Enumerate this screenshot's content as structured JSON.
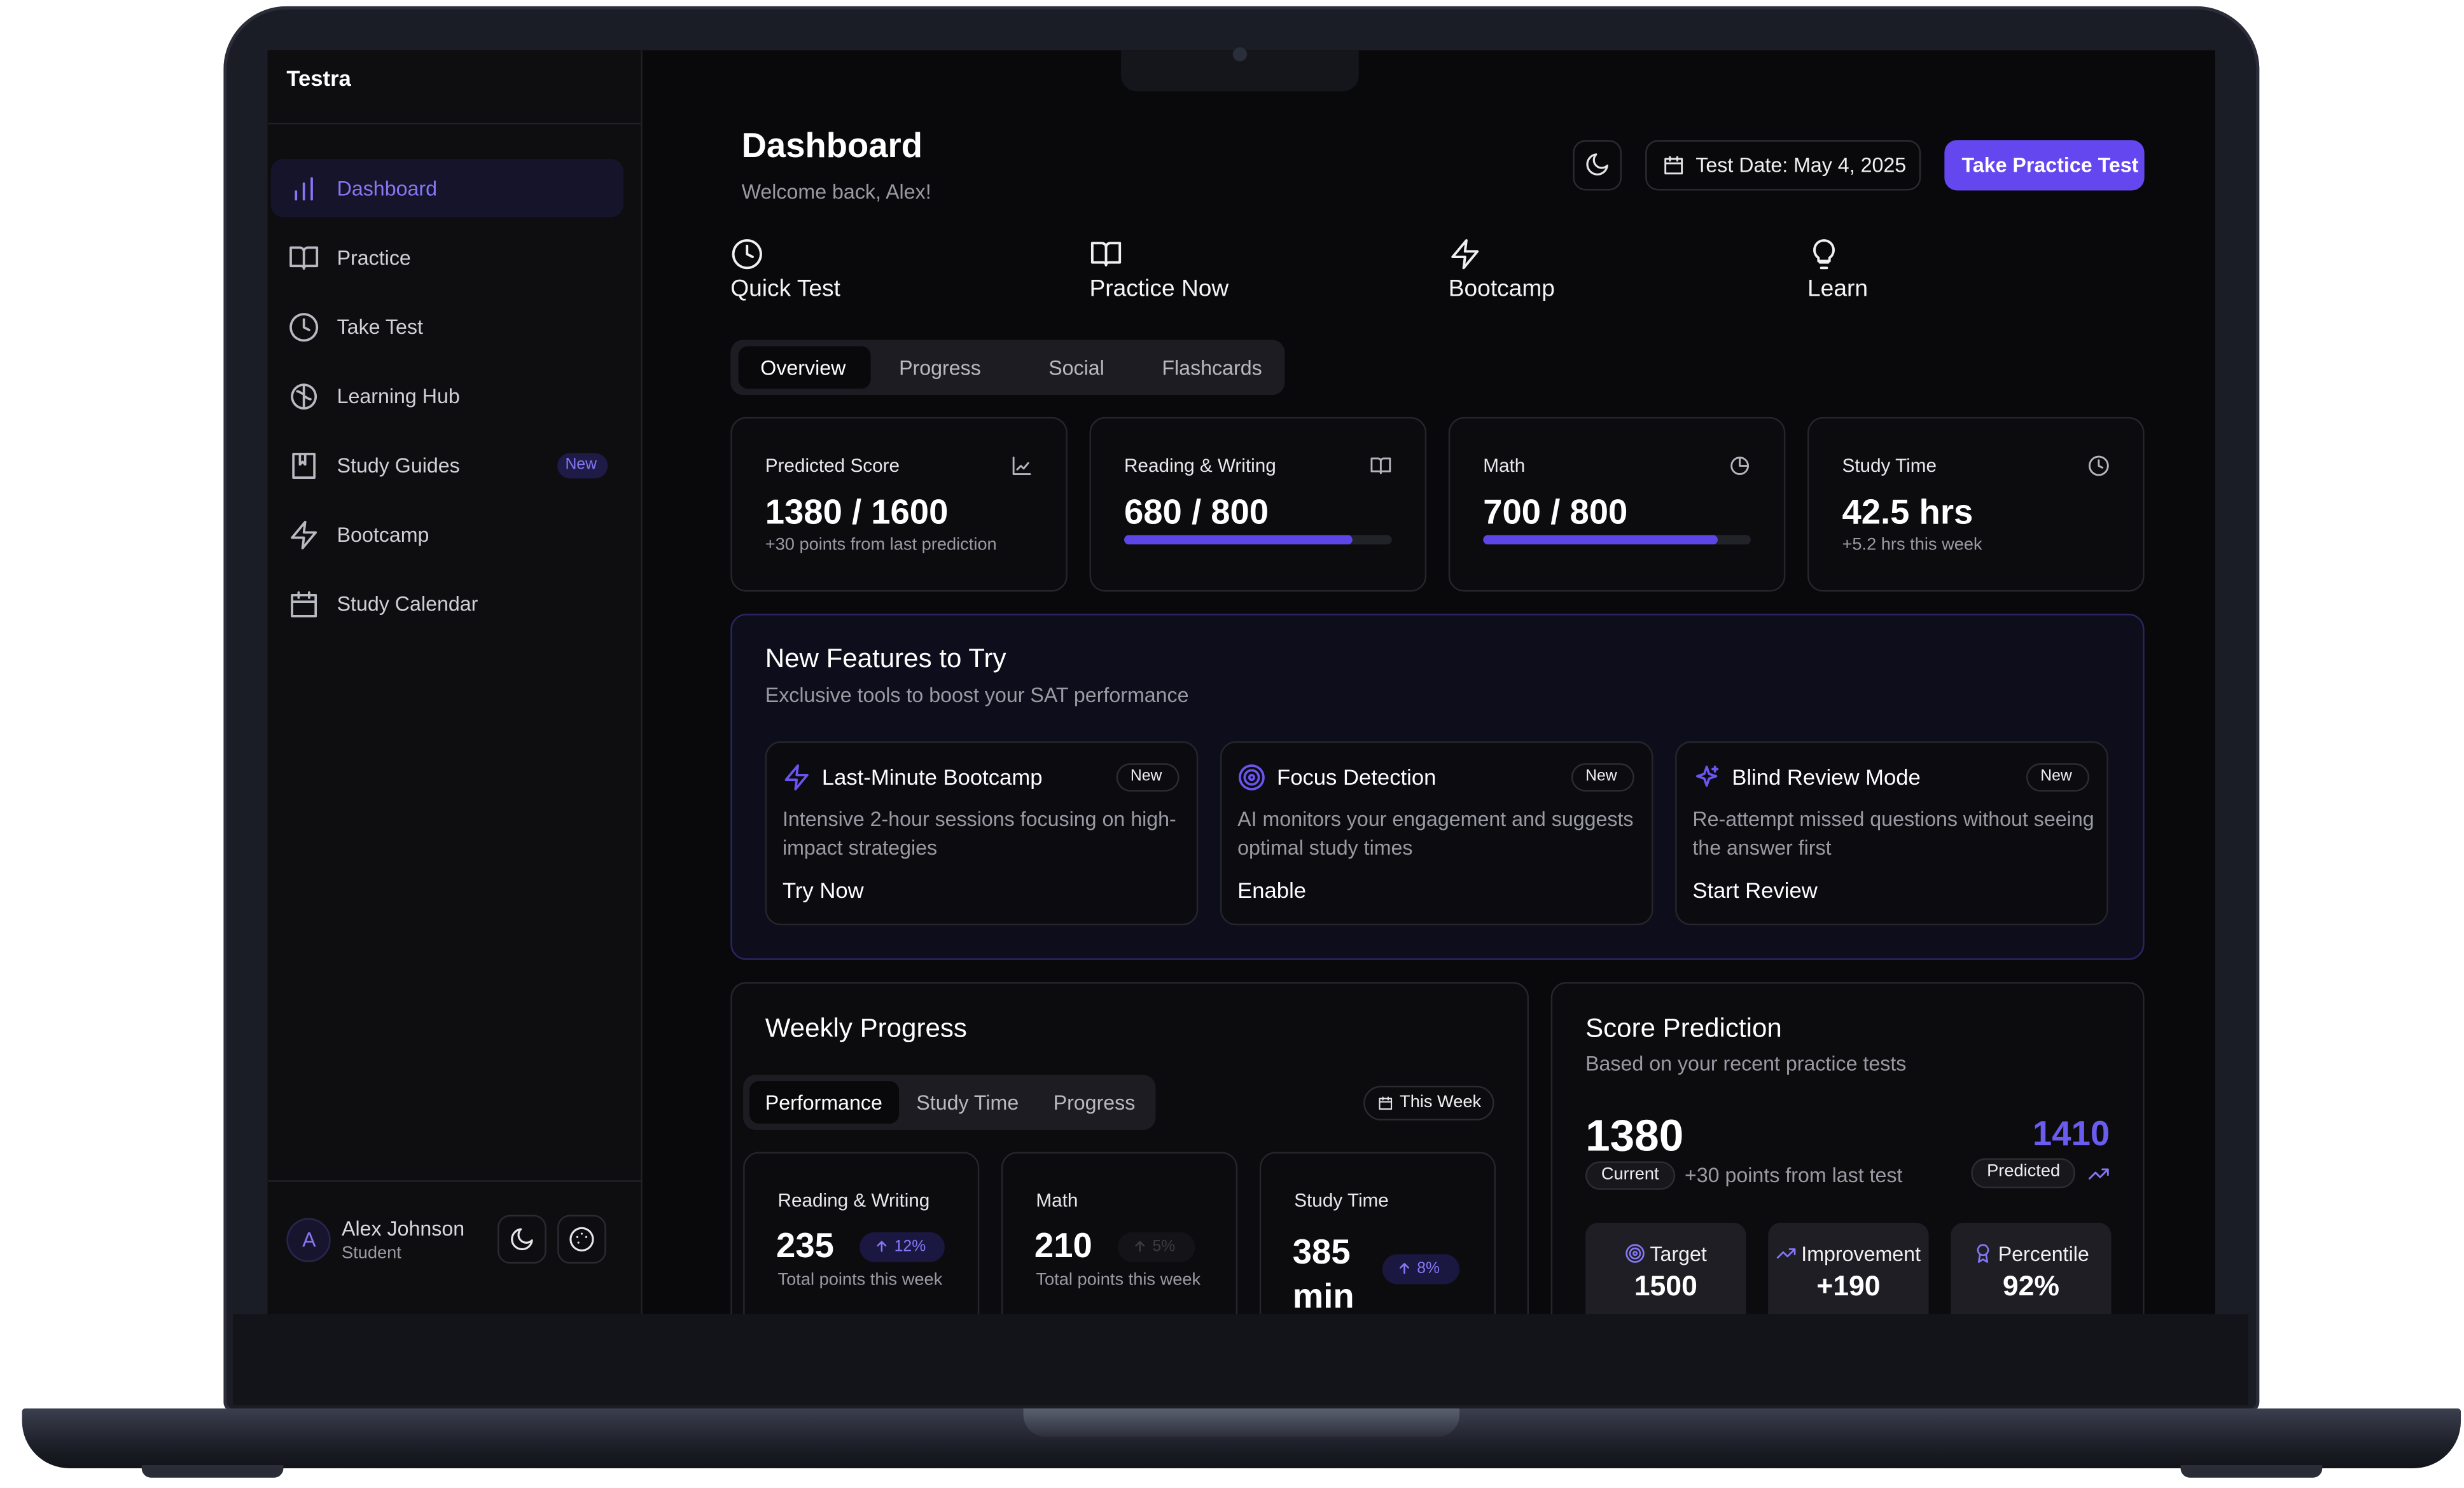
{
  "sidebar": {
    "brand": "Testra",
    "nav": [
      {
        "label": "Dashboard"
      },
      {
        "label": "Practice"
      },
      {
        "label": "Take Test"
      },
      {
        "label": "Learning Hub"
      },
      {
        "label": "Study Guides",
        "badge": "New"
      },
      {
        "label": "Bootcamp"
      },
      {
        "label": "Study Calendar"
      }
    ],
    "user": {
      "initial": "A",
      "name": "Alex Johnson",
      "role": "Student"
    }
  },
  "header": {
    "title": "Dashboard",
    "subtitle": "Welcome back, Alex!",
    "test_date": "Test Date: May 4, 2025",
    "cta": "Take Practice Test"
  },
  "quick_actions": [
    "Quick Test",
    "Practice Now",
    "Bootcamp",
    "Learn"
  ],
  "tabs": [
    "Overview",
    "Progress",
    "Social",
    "Flashcards"
  ],
  "stats": [
    {
      "label": "Predicted Score",
      "value": "1380 / 1600",
      "note": "+30 points from last prediction"
    },
    {
      "label": "Reading & Writing",
      "value": "680 / 800",
      "progress": 85
    },
    {
      "label": "Math",
      "value": "700 / 800",
      "progress": 87.5
    },
    {
      "label": "Study Time",
      "value": "42.5 hrs",
      "note": "+5.2 hrs this week"
    }
  ],
  "features": {
    "title": "New Features to Try",
    "subtitle": "Exclusive tools to boost your SAT performance",
    "items": [
      {
        "title": "Last-Minute Bootcamp",
        "badge": "New",
        "description": "Intensive 2-hour sessions focusing on high-impact strategies",
        "action": "Try Now"
      },
      {
        "title": "Focus Detection",
        "badge": "New",
        "description": "AI monitors your engagement and suggests optimal study times",
        "action": "Enable"
      },
      {
        "title": "Blind Review Mode",
        "badge": "New",
        "description": "Re-attempt missed questions without seeing the answer first",
        "action": "Start Review"
      }
    ]
  },
  "weekly": {
    "title": "Weekly Progress",
    "tabs": [
      "Performance",
      "Study Time",
      "Progress"
    ],
    "range": "This Week",
    "cards": [
      {
        "label": "Reading & Writing",
        "value": "235",
        "change": "12%",
        "note": "Total points this week"
      },
      {
        "label": "Math",
        "value": "210",
        "change": "5%",
        "note": "Total points this week"
      },
      {
        "label": "Study Time",
        "value": "385 min",
        "change": "8%"
      }
    ]
  },
  "score": {
    "title": "Score Prediction",
    "subtitle": "Based on your recent practice tests",
    "current": "1380",
    "current_label": "Current",
    "delta": "+30 points from last test",
    "predicted": "1410",
    "predicted_label": "Predicted",
    "tiles": [
      {
        "label": "Target",
        "value": "1500"
      },
      {
        "label": "Improvement",
        "value": "+190"
      },
      {
        "label": "Percentile",
        "value": "92%"
      }
    ]
  }
}
